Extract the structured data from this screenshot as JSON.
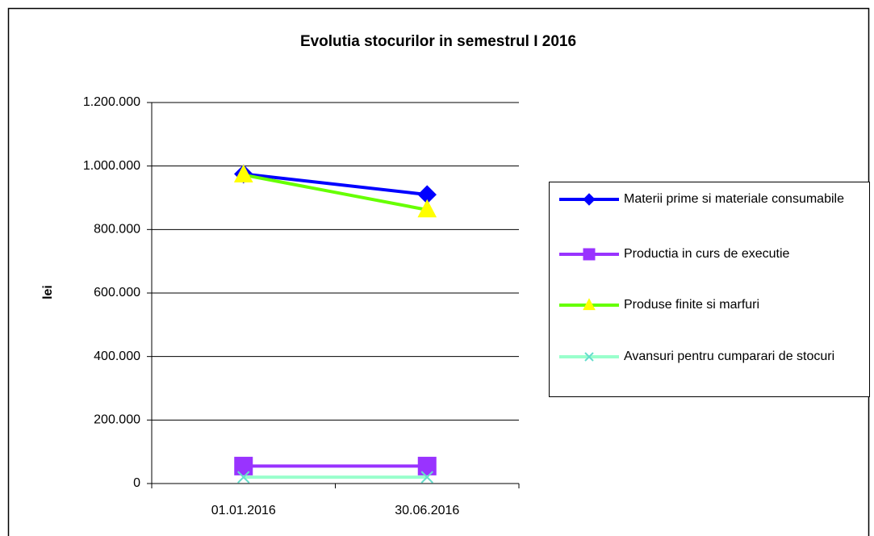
{
  "chart_data": {
    "type": "line",
    "title": "Evolutia stocurilor in semestrul I 2016",
    "y_label": "lei",
    "categories": [
      "01.01.2016",
      "30.06.2016"
    ],
    "series": [
      {
        "name": "Materii prime si materiale consumabile",
        "color": "#0000ff",
        "marker": "diamond",
        "marker_color": "#0000ff",
        "values": [
          975000,
          910000
        ]
      },
      {
        "name": "Productia in curs de executie",
        "color": "#9933ff",
        "marker": "square",
        "marker_color": "#9933ff",
        "values": [
          55000,
          55000
        ]
      },
      {
        "name": "Produse finite si marfuri",
        "color": "#66ff00",
        "marker": "triangle",
        "marker_color": "#ffff00",
        "values": [
          972000,
          862000
        ]
      },
      {
        "name": "Avansuri pentru cumparari de stocuri",
        "color": "#99ffcc",
        "marker": "x",
        "marker_color": "#66ddcc",
        "values": [
          20000,
          20000
        ]
      }
    ],
    "ylim": [
      0,
      1200000
    ],
    "yticks": [
      0,
      {
        "value": 200000,
        "label": "200.000"
      },
      {
        "value": 400000,
        "label": "400.000"
      },
      {
        "value": 600000,
        "label": "600.000"
      },
      {
        "value": 800000,
        "label": "800.000"
      },
      {
        "value": 1000000,
        "label": "1.000.000"
      },
      {
        "value": 1200000,
        "label": "1.200.000"
      }
    ],
    "grid": true,
    "legend": "right"
  }
}
